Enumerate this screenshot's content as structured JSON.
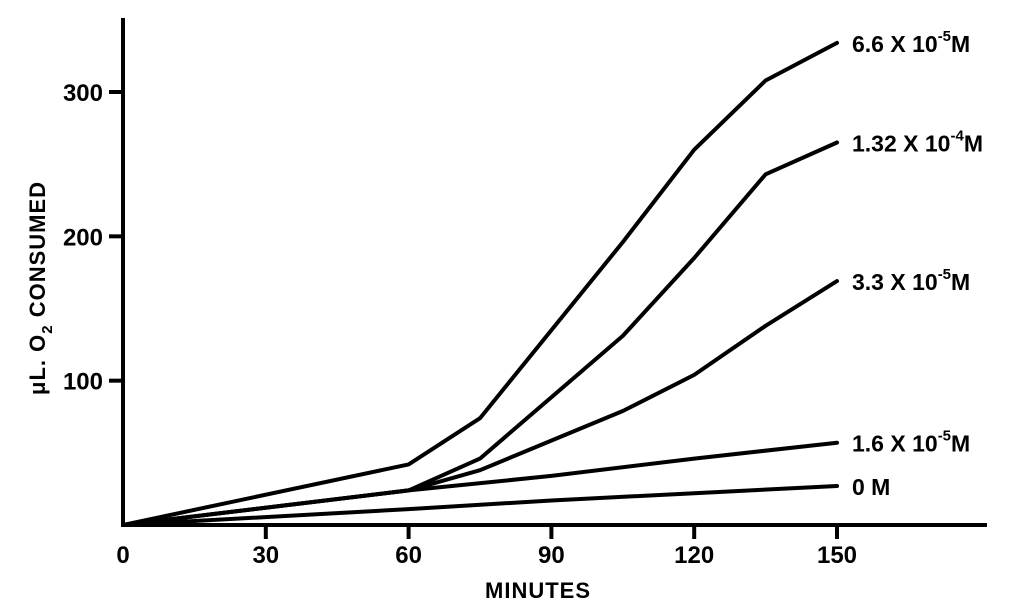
{
  "chart_data": {
    "type": "line",
    "title": "",
    "xlabel": "MINUTES",
    "ylabel_parts": [
      "μL. O",
      "2",
      " CONSUMED"
    ],
    "xlim": [
      0,
      180
    ],
    "ylim": [
      0,
      350
    ],
    "x_ticks": [
      0,
      30,
      60,
      90,
      120,
      150
    ],
    "y_ticks": [
      100,
      200,
      300
    ],
    "grid": false,
    "legend": "inline labels at line ends",
    "series": [
      {
        "name": "6.6 X 10⁻⁵M",
        "label_parts": [
          "6.6 X 10",
          "-5",
          "M"
        ],
        "x": [
          0,
          60,
          75,
          105,
          120,
          135,
          150
        ],
        "y": [
          0,
          42,
          74,
          196,
          260,
          308,
          334
        ]
      },
      {
        "name": "1.32 X 10⁻⁴M",
        "label_parts": [
          "1.32 X 10",
          "-4",
          "M"
        ],
        "x": [
          0,
          60,
          75,
          105,
          120,
          135,
          150
        ],
        "y": [
          0,
          24,
          46,
          131,
          185,
          243,
          265
        ]
      },
      {
        "name": "3.3 X 10⁻⁵M",
        "label_parts": [
          "3.3 X 10",
          "-5",
          "M"
        ],
        "x": [
          0,
          60,
          75,
          105,
          120,
          135,
          150
        ],
        "y": [
          0,
          24,
          38,
          79,
          104,
          138,
          169
        ]
      },
      {
        "name": "1.6 X 10⁻⁵M",
        "label_parts": [
          "1.6 X 10",
          "-5",
          "M"
        ],
        "x": [
          0,
          60,
          90,
          120,
          150
        ],
        "y": [
          0,
          24,
          34,
          46,
          57
        ]
      },
      {
        "name": "0 M",
        "label_parts": [
          "0   M",
          "",
          ""
        ],
        "x": [
          0,
          60,
          90,
          120,
          150
        ],
        "y": [
          0,
          11,
          17,
          22,
          27
        ]
      }
    ]
  }
}
